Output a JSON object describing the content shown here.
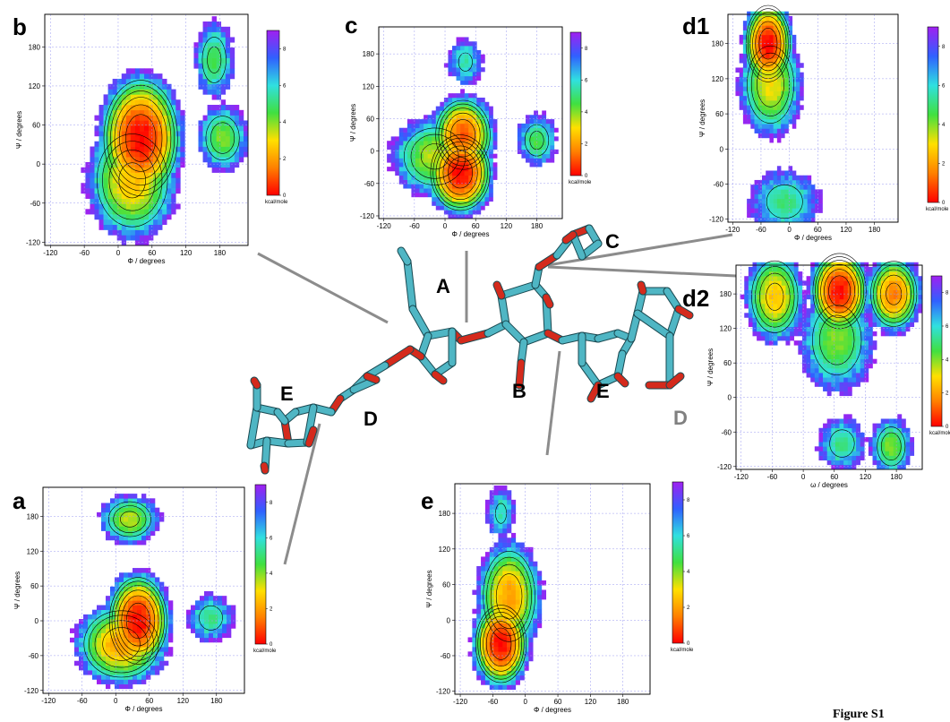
{
  "figure_label": "Figure S1",
  "residue_labels": [
    {
      "text": "A",
      "color": "#000000"
    },
    {
      "text": "B",
      "color": "#000000"
    },
    {
      "text": "C",
      "color": "#000000"
    },
    {
      "text": "D",
      "color": "#000000"
    },
    {
      "text": "E",
      "color": "#000000"
    },
    {
      "text": "E",
      "color": "#000000"
    },
    {
      "text": "D",
      "color": "#808080"
    }
  ],
  "colors": {
    "molecule_carbon": "#4fb6c4",
    "molecule_oxygen": "#d42a1c",
    "connector": "#8c8c8c",
    "grid": "#9b9bf0",
    "colorscale": [
      "#ff0000",
      "#ff8000",
      "#ffe000",
      "#40e040",
      "#30e0e0",
      "#3060ff",
      "#a020f0"
    ]
  },
  "chart_data": [
    {
      "panel": "b",
      "type": "heatmap",
      "xlabel": "Φ / degrees",
      "ylabel": "Ψ / degrees",
      "xlim": [
        -130,
        230
      ],
      "ylim": [
        -125,
        230
      ],
      "xticks": [
        -120,
        -60,
        0,
        60,
        120,
        180
      ],
      "yticks": [
        -120,
        -60,
        0,
        60,
        120,
        180
      ],
      "colorbar": {
        "ticks": [
          0,
          2,
          4,
          6,
          8
        ],
        "label": "kcal/mole",
        "range": [
          0,
          9
        ]
      },
      "grid": true,
      "minima": [
        {
          "phi": 40,
          "psi": 40,
          "energy": 0,
          "sx": 28,
          "sy": 38
        },
        {
          "phi": 25,
          "psi": -25,
          "energy": 2.5,
          "sx": 35,
          "sy": 40
        },
        {
          "phi": 170,
          "psi": 160,
          "energy": 4.5,
          "sx": 18,
          "sy": 30
        },
        {
          "phi": 185,
          "psi": 40,
          "energy": 4.0,
          "sx": 22,
          "sy": 25
        }
      ]
    },
    {
      "panel": "c",
      "type": "heatmap",
      "xlabel": "Φ / degrees",
      "ylabel": "Ψ / degrees",
      "xlim": [
        -130,
        230
      ],
      "ylim": [
        -125,
        230
      ],
      "xticks": [
        -120,
        -60,
        0,
        60,
        120,
        180
      ],
      "yticks": [
        -120,
        -60,
        0,
        60,
        120,
        180
      ],
      "colorbar": {
        "ticks": [
          0,
          2,
          4,
          6,
          8
        ],
        "label": "kcal/mole",
        "range": [
          0,
          9
        ]
      },
      "grid": true,
      "minima": [
        {
          "phi": 30,
          "psi": -40,
          "energy": 0,
          "sx": 25,
          "sy": 30
        },
        {
          "phi": 35,
          "psi": 30,
          "energy": 1.0,
          "sx": 25,
          "sy": 30
        },
        {
          "phi": -20,
          "psi": -10,
          "energy": 3.5,
          "sx": 40,
          "sy": 35
        },
        {
          "phi": 180,
          "psi": 20,
          "energy": 4.5,
          "sx": 20,
          "sy": 25
        },
        {
          "phi": 40,
          "psi": 165,
          "energy": 5.5,
          "sx": 20,
          "sy": 25
        }
      ]
    },
    {
      "panel": "d1",
      "type": "heatmap",
      "xlabel": "Φ / degrees",
      "ylabel": "Ψ / degrees",
      "xlim": [
        -130,
        230
      ],
      "ylim": [
        -125,
        230
      ],
      "xticks": [
        -120,
        -60,
        0,
        60,
        120,
        180
      ],
      "yticks": [
        -120,
        -60,
        0,
        60,
        120,
        180
      ],
      "colorbar": {
        "ticks": [
          0,
          2,
          4,
          6,
          8
        ],
        "label": "kcal/mole",
        "range": [
          0,
          9
        ]
      },
      "grid": true,
      "minima": [
        {
          "phi": -45,
          "psi": 180,
          "energy": 0,
          "sx": 20,
          "sy": 28
        },
        {
          "phi": -40,
          "psi": 110,
          "energy": 3.0,
          "sx": 30,
          "sy": 40
        },
        {
          "phi": -10,
          "psi": -90,
          "energy": 5.0,
          "sx": 40,
          "sy": 30
        }
      ]
    },
    {
      "panel": "d2",
      "type": "heatmap",
      "xlabel": "ω / degrees",
      "ylabel": "Ψ / degrees",
      "xlim": [
        -130,
        230
      ],
      "ylim": [
        -125,
        230
      ],
      "xticks": [
        -120,
        -60,
        0,
        60,
        120,
        180
      ],
      "yticks": [
        -120,
        -60,
        0,
        60,
        120,
        180
      ],
      "colorbar": {
        "ticks": [
          0,
          2,
          4,
          6,
          8
        ],
        "label": "kcal/mole",
        "range": [
          0,
          9
        ]
      },
      "grid": true,
      "minima": [
        {
          "phi": 70,
          "psi": 185,
          "energy": 0,
          "sx": 22,
          "sy": 28
        },
        {
          "phi": 175,
          "psi": 180,
          "energy": 1.5,
          "sx": 22,
          "sy": 28
        },
        {
          "phi": -55,
          "psi": 175,
          "energy": 2.5,
          "sx": 25,
          "sy": 35
        },
        {
          "phi": 65,
          "psi": 100,
          "energy": 4.0,
          "sx": 35,
          "sy": 45
        },
        {
          "phi": 170,
          "psi": -85,
          "energy": 4.0,
          "sx": 20,
          "sy": 25
        },
        {
          "phi": 75,
          "psi": -80,
          "energy": 5.0,
          "sx": 25,
          "sy": 25
        }
      ]
    },
    {
      "panel": "a",
      "type": "heatmap",
      "xlabel": "Φ / degrees",
      "ylabel": "Ψ / degrees",
      "xlim": [
        -130,
        230
      ],
      "ylim": [
        -125,
        230
      ],
      "xticks": [
        -120,
        -60,
        0,
        60,
        120,
        180
      ],
      "yticks": [
        -120,
        -60,
        0,
        60,
        120,
        180
      ],
      "colorbar": {
        "ticks": [
          0,
          2,
          4,
          6,
          8
        ],
        "label": "kcal/mole",
        "range": [
          0,
          9
        ]
      },
      "grid": true,
      "minima": [
        {
          "phi": 40,
          "psi": 0,
          "energy": 0,
          "sx": 22,
          "sy": 32
        },
        {
          "phi": 10,
          "psi": -40,
          "energy": 2.0,
          "sx": 35,
          "sy": 30
        },
        {
          "phi": 25,
          "psi": 175,
          "energy": 3.5,
          "sx": 25,
          "sy": 20
        },
        {
          "phi": 170,
          "psi": 5,
          "energy": 5.0,
          "sx": 22,
          "sy": 22
        }
      ]
    },
    {
      "panel": "e",
      "type": "heatmap",
      "xlabel": "Φ / degrees",
      "ylabel": "Ψ / degrees",
      "xlim": [
        -130,
        230
      ],
      "ylim": [
        -125,
        230
      ],
      "xticks": [
        -120,
        -60,
        0,
        60,
        120,
        180
      ],
      "yticks": [
        -120,
        -60,
        0,
        60,
        120,
        180
      ],
      "colorbar": {
        "ticks": [
          0,
          2,
          4,
          6,
          8
        ],
        "label": "kcal/mole",
        "range": [
          0,
          9
        ]
      },
      "grid": true,
      "minima": [
        {
          "phi": -45,
          "psi": -40,
          "energy": 0,
          "sx": 20,
          "sy": 28
        },
        {
          "phi": -30,
          "psi": 40,
          "energy": 2.0,
          "sx": 25,
          "sy": 40
        },
        {
          "phi": -45,
          "psi": 180,
          "energy": 5.5,
          "sx": 15,
          "sy": 25
        }
      ]
    }
  ]
}
